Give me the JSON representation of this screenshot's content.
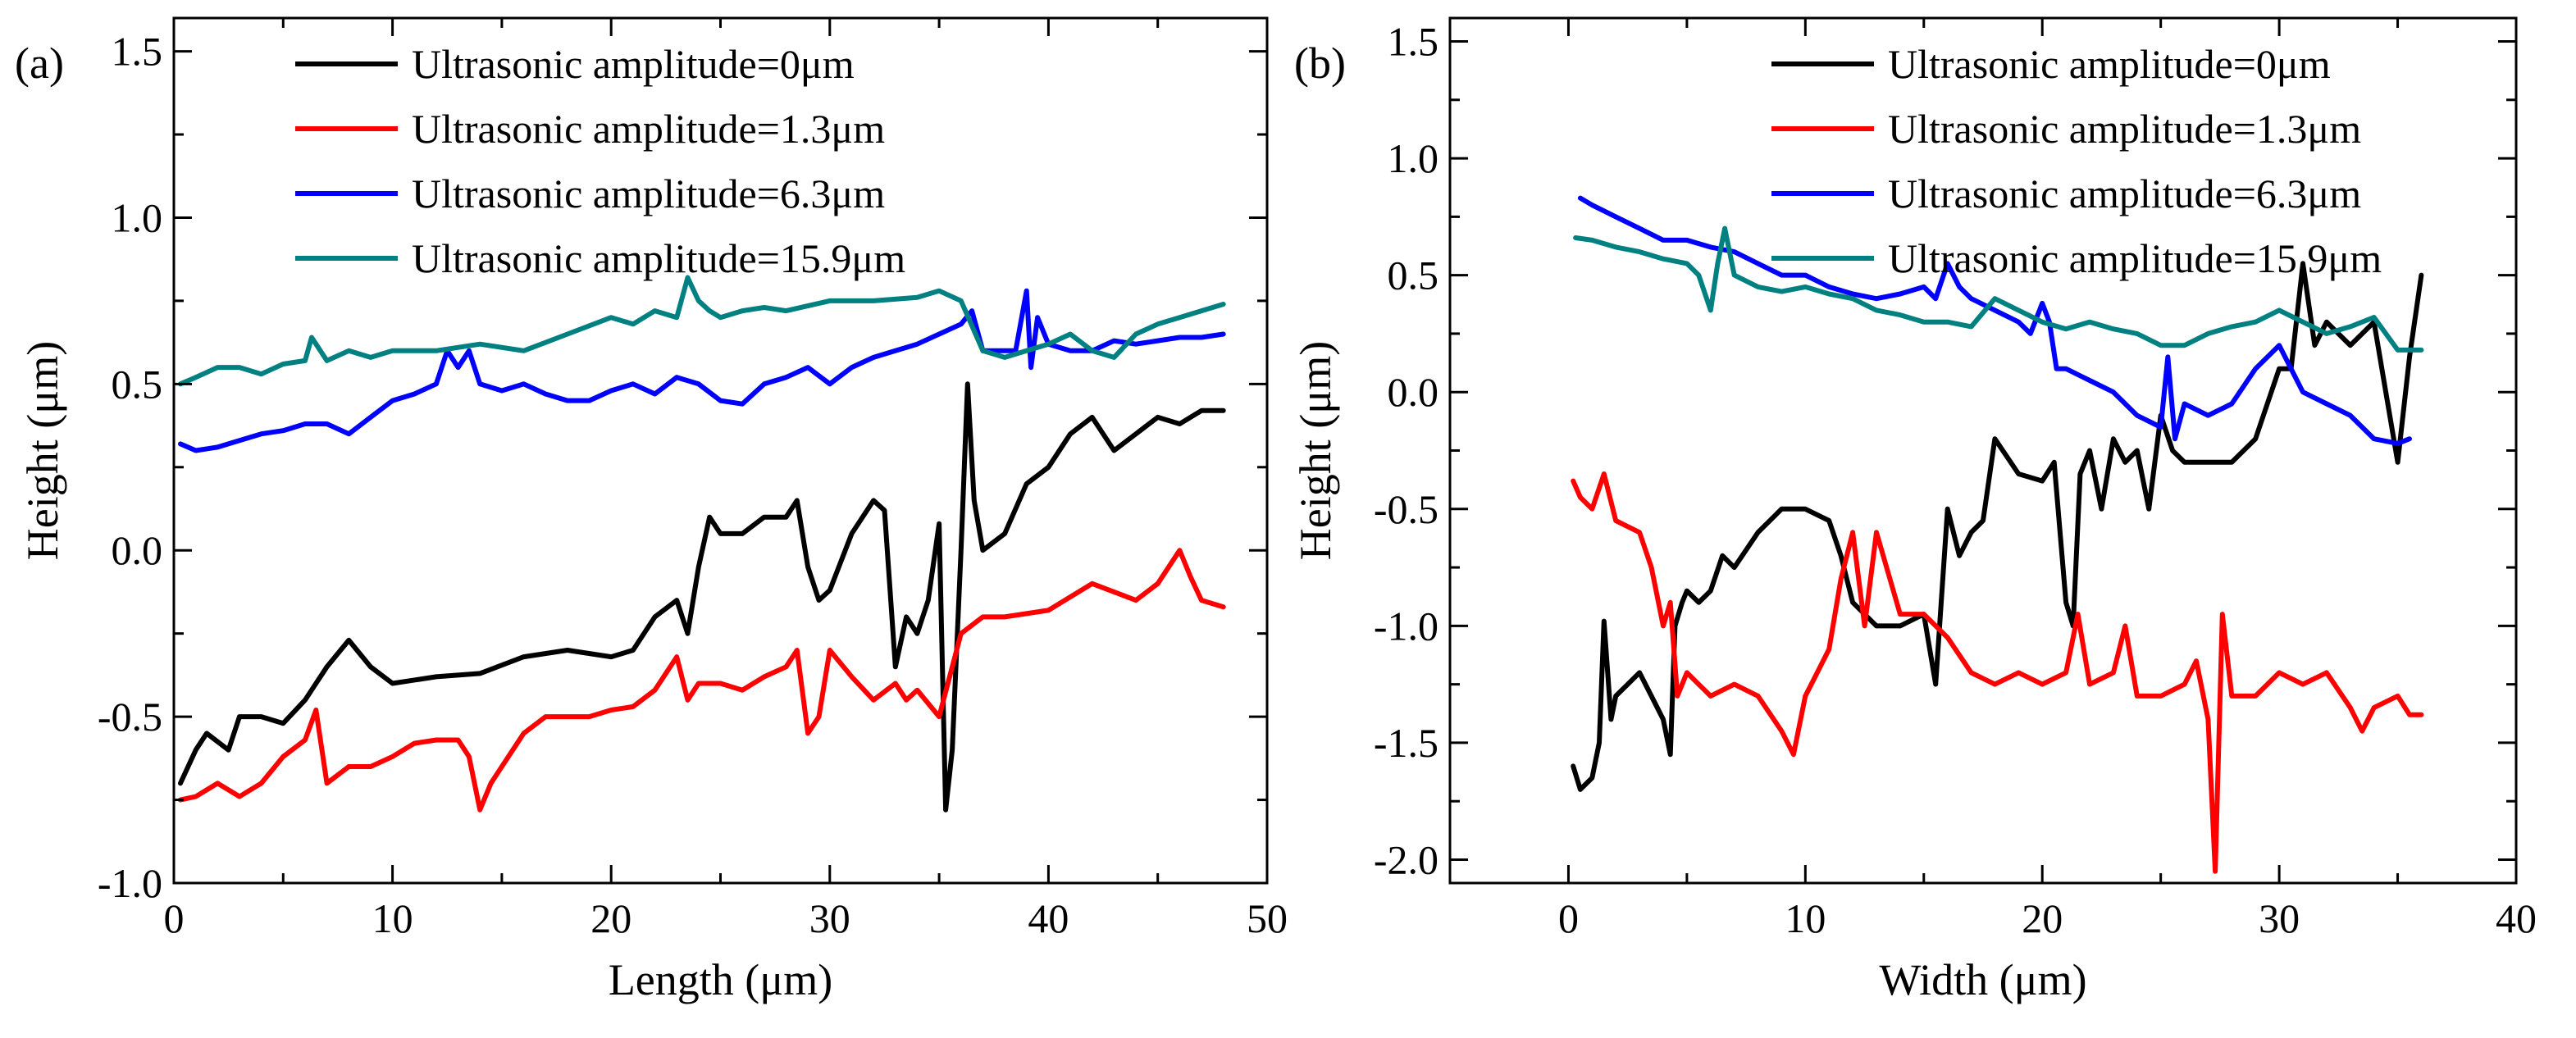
{
  "chart_data": [
    {
      "type": "line",
      "panel_label": "(a)",
      "xlabel": "Length (μm)",
      "ylabel": "Height (μm)",
      "xlim": [
        0,
        50
      ],
      "ylim": [
        -1.0,
        1.6
      ],
      "xticks": [
        0,
        10,
        20,
        30,
        40,
        50
      ],
      "yticks": [
        -1.0,
        -0.5,
        0.0,
        0.5,
        1.0,
        1.5
      ],
      "xtick_labels": [
        "0",
        "10",
        "20",
        "30",
        "40",
        "50"
      ],
      "ytick_labels": [
        "-1.0",
        "-0.5",
        "0.0",
        "0.5",
        "1.0",
        "1.5"
      ],
      "grid": false,
      "legend_position": "top",
      "series": [
        {
          "name": "Ultrasonic amplitude=0μm",
          "color": "#000000",
          "x": [
            0.3,
            1,
            1.5,
            2.5,
            3,
            4,
            5,
            6,
            7,
            8,
            9,
            10,
            12,
            14,
            16,
            18,
            20,
            21,
            22,
            23,
            23.5,
            24,
            24.5,
            25,
            26,
            27,
            28,
            28.5,
            29,
            29.5,
            30,
            31,
            32,
            32.5,
            33,
            33.5,
            34,
            34.5,
            35,
            35.3,
            35.6,
            36,
            36.3,
            36.6,
            37,
            38,
            39,
            40,
            41,
            42,
            43,
            44,
            45,
            46,
            47,
            48
          ],
          "y": [
            -0.7,
            -0.6,
            -0.55,
            -0.6,
            -0.5,
            -0.5,
            -0.52,
            -0.45,
            -0.35,
            -0.27,
            -0.35,
            -0.4,
            -0.38,
            -0.37,
            -0.32,
            -0.3,
            -0.32,
            -0.3,
            -0.2,
            -0.15,
            -0.25,
            -0.05,
            0.1,
            0.05,
            0.05,
            0.1,
            0.1,
            0.15,
            -0.05,
            -0.15,
            -0.12,
            0.05,
            0.15,
            0.12,
            -0.35,
            -0.2,
            -0.25,
            -0.15,
            0.08,
            -0.78,
            -0.6,
            0.0,
            0.5,
            0.15,
            0.0,
            0.05,
            0.2,
            0.25,
            0.35,
            0.4,
            0.3,
            0.35,
            0.4,
            0.38,
            0.42,
            0.42
          ]
        },
        {
          "name": "Ultrasonic amplitude=1.3μm",
          "color": "#ff0000",
          "x": [
            0.3,
            1,
            2,
            3,
            4,
            5,
            6,
            6.5,
            7,
            8,
            9,
            10,
            11,
            12,
            13,
            13.5,
            14,
            14.5,
            15,
            16,
            17,
            18,
            19,
            20,
            21,
            22,
            23,
            23.5,
            24,
            25,
            26,
            27,
            28,
            28.5,
            29,
            29.5,
            30,
            31,
            32,
            33,
            33.5,
            34,
            35,
            36,
            37,
            38,
            40,
            42,
            44,
            45,
            46,
            46.5,
            47,
            48
          ],
          "y": [
            -0.75,
            -0.74,
            -0.7,
            -0.74,
            -0.7,
            -0.62,
            -0.57,
            -0.48,
            -0.7,
            -0.65,
            -0.65,
            -0.62,
            -0.58,
            -0.57,
            -0.57,
            -0.62,
            -0.78,
            -0.7,
            -0.65,
            -0.55,
            -0.5,
            -0.5,
            -0.5,
            -0.48,
            -0.47,
            -0.42,
            -0.32,
            -0.45,
            -0.4,
            -0.4,
            -0.42,
            -0.38,
            -0.35,
            -0.3,
            -0.55,
            -0.5,
            -0.3,
            -0.38,
            -0.45,
            -0.4,
            -0.45,
            -0.42,
            -0.5,
            -0.25,
            -0.2,
            -0.2,
            -0.18,
            -0.1,
            -0.15,
            -0.1,
            0.0,
            -0.08,
            -0.15,
            -0.17
          ]
        },
        {
          "name": "Ultrasonic amplitude=6.3μm",
          "color": "#0000ff",
          "x": [
            0.3,
            1,
            2,
            3,
            4,
            5,
            6,
            7,
            8,
            9,
            10,
            11,
            12,
            12.5,
            13,
            13.5,
            14,
            15,
            16,
            17,
            18,
            19,
            20,
            21,
            22,
            23,
            24,
            25,
            26,
            27,
            28,
            29,
            30,
            31,
            32,
            33,
            34,
            35,
            36,
            36.5,
            37,
            38,
            38.5,
            39,
            39.2,
            39.5,
            40,
            41,
            42,
            43,
            44,
            45,
            46,
            47,
            48
          ],
          "y": [
            0.32,
            0.3,
            0.31,
            0.33,
            0.35,
            0.36,
            0.38,
            0.38,
            0.35,
            0.4,
            0.45,
            0.47,
            0.5,
            0.6,
            0.55,
            0.6,
            0.5,
            0.48,
            0.5,
            0.47,
            0.45,
            0.45,
            0.48,
            0.5,
            0.47,
            0.52,
            0.5,
            0.45,
            0.44,
            0.5,
            0.52,
            0.55,
            0.5,
            0.55,
            0.58,
            0.6,
            0.62,
            0.65,
            0.68,
            0.72,
            0.6,
            0.6,
            0.6,
            0.78,
            0.55,
            0.7,
            0.62,
            0.6,
            0.6,
            0.63,
            0.62,
            0.63,
            0.64,
            0.64,
            0.65
          ]
        },
        {
          "name": "Ultrasonic amplitude=15.9μm",
          "color": "#008080",
          "x": [
            0.3,
            1,
            2,
            3,
            4,
            5,
            6,
            6.3,
            7,
            8,
            9,
            10,
            11,
            12,
            14,
            16,
            18,
            20,
            21,
            22,
            23,
            23.5,
            24,
            24.5,
            25,
            26,
            27,
            28,
            30,
            32,
            34,
            35,
            36,
            37,
            38,
            39,
            40,
            41,
            42,
            43,
            44,
            45,
            46,
            47,
            48
          ],
          "y": [
            0.5,
            0.52,
            0.55,
            0.55,
            0.53,
            0.56,
            0.57,
            0.64,
            0.57,
            0.6,
            0.58,
            0.6,
            0.6,
            0.6,
            0.62,
            0.6,
            0.65,
            0.7,
            0.68,
            0.72,
            0.7,
            0.82,
            0.75,
            0.72,
            0.7,
            0.72,
            0.73,
            0.72,
            0.75,
            0.75,
            0.76,
            0.78,
            0.75,
            0.6,
            0.58,
            0.6,
            0.62,
            0.65,
            0.6,
            0.58,
            0.65,
            0.68,
            0.7,
            0.72,
            0.74
          ]
        }
      ]
    },
    {
      "type": "line",
      "panel_label": "(b)",
      "xlabel": "Width (μm)",
      "ylabel": "Height (μm)",
      "xlim": [
        -5,
        40
      ],
      "ylim": [
        -2.1,
        1.6
      ],
      "xticks": [
        0,
        10,
        20,
        30,
        40
      ],
      "yticks": [
        -2.0,
        -1.5,
        -1.0,
        -0.5,
        0.0,
        0.5,
        1.0,
        1.5
      ],
      "xtick_labels": [
        "0",
        "10",
        "20",
        "30",
        "40"
      ],
      "ytick_labels": [
        "-2.0",
        "-1.5",
        "-1.0",
        "-0.5",
        "0.0",
        "0.5",
        "1.0",
        "1.5"
      ],
      "grid": false,
      "legend_position": "top-right",
      "series": [
        {
          "name": "Ultrasonic amplitude=0μm",
          "color": "#000000",
          "x": [
            0.2,
            0.5,
            1,
            1.3,
            1.5,
            1.8,
            2,
            2.5,
            3,
            3.5,
            4,
            4.3,
            4.5,
            4.8,
            5,
            5.5,
            6,
            6.5,
            7,
            8,
            9,
            10,
            11,
            11.5,
            12,
            13,
            14,
            15,
            15.5,
            16,
            16.5,
            17,
            17.5,
            18,
            19,
            20,
            20.5,
            21,
            21.3,
            21.6,
            22,
            22.5,
            23,
            23.5,
            24,
            24.5,
            25,
            25.5,
            26,
            27,
            28,
            29,
            30,
            30.5,
            31,
            31.5,
            32,
            33,
            34,
            34.5,
            35,
            35.5,
            36
          ],
          "y": [
            -1.6,
            -1.7,
            -1.65,
            -1.5,
            -0.98,
            -1.4,
            -1.3,
            -1.25,
            -1.2,
            -1.3,
            -1.4,
            -1.55,
            -1.0,
            -0.9,
            -0.85,
            -0.9,
            -0.85,
            -0.7,
            -0.75,
            -0.6,
            -0.5,
            -0.5,
            -0.55,
            -0.7,
            -0.9,
            -1.0,
            -1.0,
            -0.95,
            -1.25,
            -0.5,
            -0.7,
            -0.6,
            -0.55,
            -0.2,
            -0.35,
            -0.38,
            -0.3,
            -0.9,
            -1.0,
            -0.35,
            -0.25,
            -0.5,
            -0.2,
            -0.3,
            -0.25,
            -0.5,
            -0.1,
            -0.25,
            -0.3,
            -0.3,
            -0.3,
            -0.2,
            0.1,
            0.1,
            0.55,
            0.2,
            0.3,
            0.2,
            0.3,
            0.0,
            -0.3,
            0.15,
            0.5
          ]
        },
        {
          "name": "Ultrasonic amplitude=1.3μm",
          "color": "#ff0000",
          "x": [
            0.2,
            0.5,
            1,
            1.5,
            2,
            3,
            3.5,
            4,
            4.3,
            4.6,
            5,
            5.5,
            6,
            7,
            8,
            9,
            9.5,
            10,
            10.5,
            11,
            11.5,
            12,
            12.5,
            13,
            14,
            15,
            16,
            17,
            18,
            19,
            20,
            21,
            21.5,
            22,
            23,
            23.5,
            24,
            25,
            26,
            26.5,
            27,
            27.3,
            27.6,
            28,
            29,
            30,
            31,
            32,
            33,
            33.5,
            34,
            35,
            35.5,
            36
          ],
          "y": [
            -0.38,
            -0.45,
            -0.5,
            -0.35,
            -0.55,
            -0.6,
            -0.75,
            -1.0,
            -0.9,
            -1.3,
            -1.2,
            -1.25,
            -1.3,
            -1.25,
            -1.3,
            -1.45,
            -1.55,
            -1.3,
            -1.2,
            -1.1,
            -0.8,
            -0.6,
            -1.0,
            -0.6,
            -0.95,
            -0.95,
            -1.05,
            -1.2,
            -1.25,
            -1.2,
            -1.25,
            -1.2,
            -0.95,
            -1.25,
            -1.2,
            -1.0,
            -1.3,
            -1.3,
            -1.25,
            -1.15,
            -1.4,
            -2.05,
            -0.95,
            -1.3,
            -1.3,
            -1.2,
            -1.25,
            -1.2,
            -1.35,
            -1.45,
            -1.35,
            -1.3,
            -1.38,
            -1.38
          ]
        },
        {
          "name": "Ultrasonic amplitude=6.3μm",
          "color": "#0000ff",
          "x": [
            0.5,
            1,
            2,
            3,
            4,
            5,
            6,
            7,
            8,
            9,
            10,
            11,
            12,
            13,
            14,
            15,
            15.5,
            16,
            16.5,
            17,
            18,
            19,
            19.5,
            20,
            20.3,
            20.6,
            21,
            22,
            23,
            24,
            25,
            25.3,
            25.6,
            26,
            27,
            28,
            29,
            30,
            31,
            32,
            33,
            34,
            35,
            35.5
          ],
          "y": [
            0.83,
            0.8,
            0.75,
            0.7,
            0.65,
            0.65,
            0.62,
            0.6,
            0.55,
            0.5,
            0.5,
            0.45,
            0.42,
            0.4,
            0.42,
            0.45,
            0.4,
            0.55,
            0.45,
            0.4,
            0.35,
            0.3,
            0.25,
            0.38,
            0.3,
            0.1,
            0.1,
            0.05,
            0.0,
            -0.1,
            -0.15,
            0.15,
            -0.2,
            -0.05,
            -0.1,
            -0.05,
            0.1,
            0.2,
            0.0,
            -0.05,
            -0.1,
            -0.2,
            -0.22,
            -0.2
          ]
        },
        {
          "name": "Ultrasonic amplitude=15.9μm",
          "color": "#008080",
          "x": [
            0.3,
            1,
            2,
            3,
            4,
            5,
            5.5,
            6,
            6.3,
            6.6,
            7,
            8,
            9,
            10,
            11,
            12,
            13,
            14,
            15,
            16,
            17,
            18,
            19,
            20,
            21,
            22,
            23,
            24,
            25,
            26,
            27,
            28,
            29,
            30,
            31,
            32,
            33,
            34,
            35,
            36
          ],
          "y": [
            0.66,
            0.65,
            0.62,
            0.6,
            0.57,
            0.55,
            0.5,
            0.35,
            0.55,
            0.7,
            0.5,
            0.45,
            0.43,
            0.45,
            0.42,
            0.4,
            0.35,
            0.33,
            0.3,
            0.3,
            0.28,
            0.4,
            0.35,
            0.3,
            0.27,
            0.3,
            0.27,
            0.25,
            0.2,
            0.2,
            0.25,
            0.28,
            0.3,
            0.35,
            0.3,
            0.25,
            0.28,
            0.32,
            0.18,
            0.18
          ]
        }
      ]
    }
  ]
}
